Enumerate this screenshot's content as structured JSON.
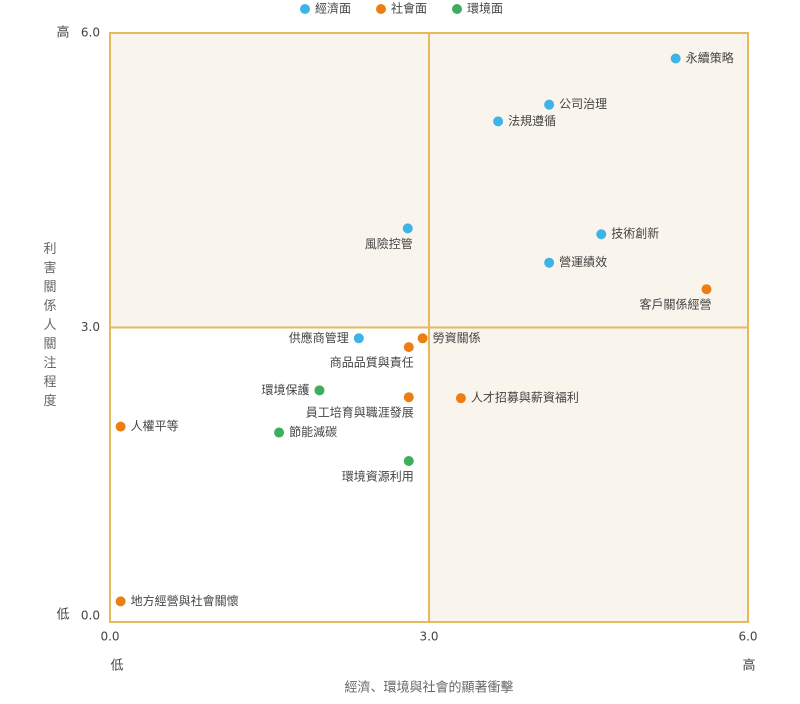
{
  "chart_data": {
    "type": "scatter",
    "xlabel": "經濟、環境與社會的顯著衝擊",
    "ylabel": "利害關係人關注程度",
    "x_low": "低",
    "x_high": "高",
    "y_low": "低",
    "y_high": "高",
    "xlim": [
      0,
      6
    ],
    "ylim": [
      0,
      6
    ],
    "xticks": [
      {
        "value": 0,
        "label": "0.0"
      },
      {
        "value": 3,
        "label": "3.0"
      },
      {
        "value": 6,
        "label": "6.0"
      }
    ],
    "yticks": [
      {
        "value": 0,
        "label": "0.0"
      },
      {
        "value": 3,
        "label": "3.0"
      },
      {
        "value": 6,
        "label": "6.0"
      }
    ],
    "series": [
      {
        "name": "經濟面",
        "color": "#3db4e6",
        "x": [
          5.32,
          4.13,
          3.65,
          2.8,
          4.62,
          4.13,
          2.34
        ],
        "y": [
          5.74,
          5.27,
          5.1,
          4.01,
          3.95,
          3.66,
          2.89
        ],
        "labels": [
          "永續策略",
          "公司治理",
          "法規遵循",
          "風險控管",
          "技術創新",
          "營運績效",
          "供應商管理"
        ]
      },
      {
        "name": "社會面",
        "color": "#ec7f14",
        "x": [
          5.61,
          2.94,
          2.81,
          2.81,
          3.3,
          0.1,
          0.1
        ],
        "y": [
          3.39,
          2.89,
          2.8,
          2.29,
          2.28,
          1.99,
          0.21
        ],
        "labels": [
          "客戶關係經營",
          "勞資關係",
          "商品品質與責任",
          "員工培育與職涯發展",
          "人才招募與薪資福利",
          "人權平等",
          "地方經營與社會關懷"
        ]
      },
      {
        "name": "環境面",
        "color": "#3dae5b",
        "x": [
          1.97,
          1.59,
          2.81
        ],
        "y": [
          2.36,
          1.93,
          1.64
        ],
        "labels": [
          "環境保護",
          "節能減碳",
          "環境資源利用"
        ]
      }
    ]
  }
}
